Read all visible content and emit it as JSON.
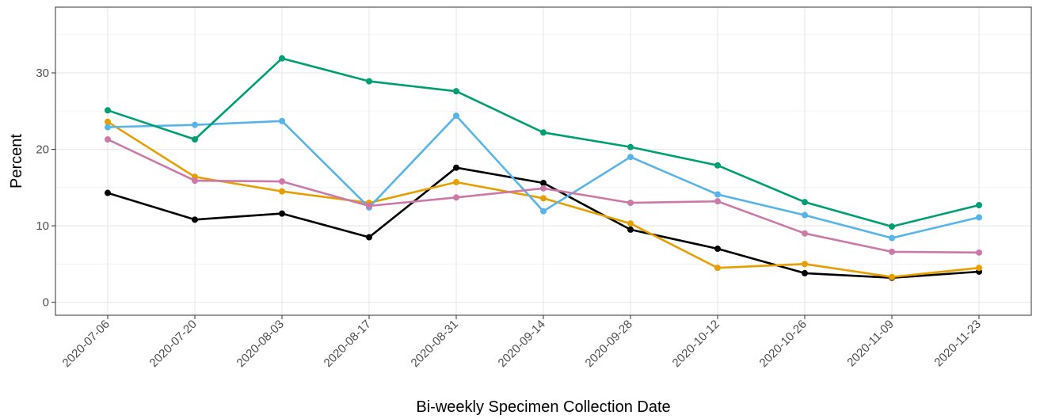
{
  "chart_data": {
    "type": "line",
    "xlabel": "Bi-weekly Specimen Collection Date",
    "ylabel": "Percent",
    "categories": [
      "2020-07-06",
      "2020-07-20",
      "2020-08-03",
      "2020-08-17",
      "2020-08-31",
      "2020-09-14",
      "2020-09-28",
      "2020-10-12",
      "2020-10-26",
      "2020-11-09",
      "2020-11-23"
    ],
    "ylim": [
      -1.7,
      38.6
    ],
    "yticks": [
      0,
      10,
      20,
      30
    ],
    "grid": true,
    "legend": "none",
    "series": [
      {
        "color": "#000000",
        "values": [
          14.3,
          10.8,
          11.6,
          8.5,
          17.6,
          15.6,
          9.5,
          7.0,
          3.8,
          3.2,
          4.0
        ]
      },
      {
        "color": "#E69F00",
        "values": [
          23.6,
          16.4,
          14.5,
          13.0,
          15.7,
          13.6,
          10.3,
          4.5,
          5.0,
          3.3,
          4.5
        ]
      },
      {
        "color": "#56B4E9",
        "values": [
          22.9,
          23.2,
          23.7,
          12.4,
          24.4,
          11.9,
          19.0,
          14.1,
          11.4,
          8.4,
          11.1
        ]
      },
      {
        "color": "#009E73",
        "values": [
          25.1,
          21.3,
          31.9,
          28.9,
          27.6,
          22.2,
          20.3,
          17.9,
          13.1,
          9.9,
          12.7
        ]
      },
      {
        "color": "#CC79A7",
        "values": [
          21.3,
          15.9,
          15.8,
          12.6,
          13.7,
          14.9,
          13.0,
          13.2,
          9.0,
          6.6,
          6.5
        ]
      }
    ]
  }
}
